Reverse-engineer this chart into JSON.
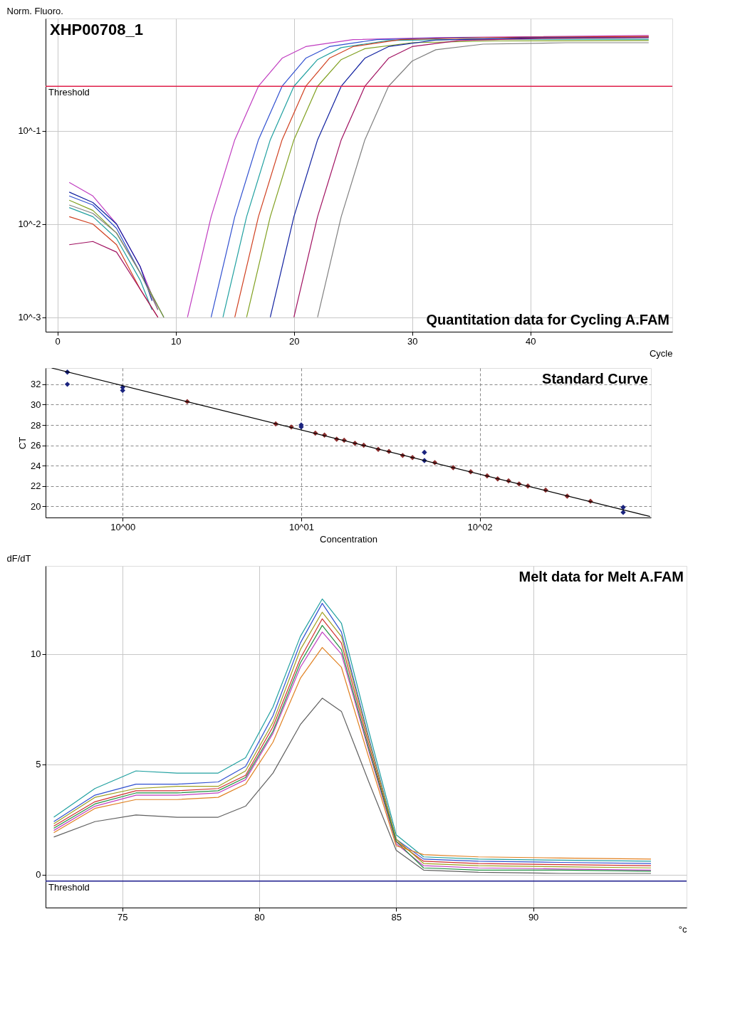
{
  "chart_data": [
    {
      "type": "line",
      "title": "XHP00708_1",
      "ylabel": "Norm. Fluoro.",
      "xlabel": "Cycle",
      "annotations": [
        "Quantitation data for Cycling A.FAM"
      ],
      "log": "y",
      "xlim": [
        -1,
        52
      ],
      "ylim": [
        0.0007,
        1.6
      ],
      "xticks": [
        0,
        10,
        20,
        30,
        40
      ],
      "yticks": [
        {
          "value": 0.001,
          "label": "10^-3"
        },
        {
          "value": 0.01,
          "label": "10^-2"
        },
        {
          "value": 0.1,
          "label": "10^-1"
        }
      ],
      "grid": true,
      "marker": "none",
      "line_style": "solid",
      "ref_lines": [
        {
          "axis": "y",
          "value": 0.3,
          "label": "Threshold",
          "color": "#e0204a"
        }
      ],
      "series": [
        {
          "color": "#c03cc0",
          "x": [
            1,
            3,
            5,
            7,
            8.5,
            10,
            11,
            13,
            15,
            17,
            19,
            21,
            25,
            32,
            50
          ],
          "values": [
            0.028,
            0.02,
            0.01,
            0.0035,
            0.0012,
            null,
            0.001,
            0.012,
            0.08,
            0.3,
            0.6,
            0.8,
            0.95,
            1.0,
            1.05
          ]
        },
        {
          "color": "#3050d0",
          "x": [
            1,
            3,
            5,
            7,
            9,
            10.5,
            13,
            15,
            17,
            19,
            21,
            23,
            27,
            34,
            50
          ],
          "values": [
            0.02,
            0.016,
            0.009,
            0.003,
            0.001,
            null,
            0.001,
            0.012,
            0.08,
            0.3,
            0.6,
            0.8,
            0.95,
            1.0,
            1.02
          ]
        },
        {
          "color": "#20a0a0",
          "x": [
            1,
            3,
            5,
            7,
            8,
            11,
            14,
            16,
            18,
            20,
            22,
            24,
            28,
            35,
            50
          ],
          "values": [
            0.015,
            0.012,
            0.007,
            0.0025,
            0.0012,
            null,
            0.001,
            0.012,
            0.08,
            0.3,
            0.58,
            0.78,
            0.93,
            0.96,
            0.96
          ]
        },
        {
          "color": "#d04020",
          "x": [
            1,
            3,
            5,
            7,
            8.5,
            11,
            15,
            17,
            19,
            21,
            23,
            25,
            29,
            36,
            50
          ],
          "values": [
            0.012,
            0.01,
            0.006,
            0.002,
            0.001,
            null,
            0.001,
            0.012,
            0.08,
            0.3,
            0.6,
            0.8,
            0.95,
            1.0,
            1.03
          ]
        },
        {
          "color": "#80a020",
          "x": [
            1,
            3,
            5,
            7,
            9,
            11,
            16,
            18,
            20,
            22,
            24,
            26,
            30,
            37,
            50
          ],
          "values": [
            0.018,
            0.014,
            0.008,
            0.003,
            0.001,
            null,
            0.001,
            0.012,
            0.08,
            0.3,
            0.58,
            0.76,
            0.88,
            0.92,
            0.93
          ]
        },
        {
          "color": "#1020a0",
          "x": [
            1,
            3,
            5,
            7,
            8,
            11,
            18,
            20,
            22,
            24,
            26,
            28,
            32,
            39,
            50
          ],
          "values": [
            0.022,
            0.017,
            0.01,
            0.0035,
            0.0015,
            null,
            0.001,
            0.012,
            0.08,
            0.3,
            0.6,
            0.8,
            0.94,
            0.99,
            1.0
          ]
        },
        {
          "color": "#a01060",
          "x": [
            1,
            3,
            5,
            7,
            8.5,
            11,
            20,
            22,
            24,
            26,
            28,
            30,
            34,
            41,
            50
          ],
          "values": [
            0.006,
            0.0065,
            0.005,
            0.002,
            0.001,
            null,
            0.001,
            0.012,
            0.08,
            0.3,
            0.6,
            0.8,
            0.93,
            0.98,
            1.0
          ]
        },
        {
          "color": "#808080",
          "x": [
            1,
            3,
            5,
            7,
            8.5,
            11,
            22,
            24,
            26,
            28,
            30,
            32,
            36,
            43,
            50
          ],
          "values": [
            0.016,
            0.013,
            0.008,
            0.003,
            0.0012,
            null,
            0.001,
            0.012,
            0.08,
            0.3,
            0.56,
            0.74,
            0.85,
            0.88,
            0.88
          ]
        }
      ]
    },
    {
      "type": "scatter",
      "xlabel": "Concentration",
      "ylabel": "CT",
      "annotations": [
        "Standard Curve"
      ],
      "log": "x",
      "xlim": [
        0.37,
        910
      ],
      "ylim": [
        18.9,
        33.6
      ],
      "xticks": [
        {
          "value": 1,
          "label": "10^00"
        },
        {
          "value": 10,
          "label": "10^01"
        },
        {
          "value": 100,
          "label": "10^02"
        }
      ],
      "yticks": [
        20,
        22,
        24,
        26,
        28,
        30,
        32
      ],
      "grid": true,
      "marker": "diamond",
      "series": [
        {
          "color": "#8b2c2c",
          "x": [
            2.3,
            7.2,
            8.8,
            12,
            13.5,
            15.8,
            17.4,
            20,
            22.4,
            27,
            31,
            37,
            42,
            56,
            71,
            89,
            110,
            126,
            145,
            166,
            186,
            234,
            309,
            417
          ],
          "values": [
            30.3,
            28.1,
            27.8,
            27.2,
            27.0,
            26.6,
            26.5,
            26.2,
            26.0,
            25.6,
            25.4,
            25.0,
            24.8,
            24.3,
            23.8,
            23.4,
            23.0,
            22.7,
            22.5,
            22.2,
            22.0,
            21.6,
            21.0,
            20.5
          ]
        },
        {
          "color": "#1a237e",
          "x": [
            0.49,
            0.49,
            1,
            1,
            10,
            10,
            49,
            49,
            636,
            636
          ],
          "values": [
            33.2,
            32.0,
            31.7,
            31.4,
            28.0,
            27.8,
            25.3,
            24.5,
            19.9,
            19.4
          ]
        },
        {
          "type": "line",
          "color": "#000000",
          "marker": "none",
          "x": [
            0.4,
            900
          ],
          "values": [
            33.6,
            19.0
          ]
        }
      ]
    },
    {
      "type": "line",
      "ylabel": "dF/dT",
      "xlabel": "°c",
      "annotations": [
        "Melt data for Melt A.FAM"
      ],
      "xlim": [
        72.2,
        95.6
      ],
      "ylim": [
        -1.5,
        14
      ],
      "xticks": [
        75,
        80,
        85,
        90
      ],
      "yticks": [
        0,
        5,
        10
      ],
      "grid": true,
      "marker": "none",
      "line_style": "solid",
      "ref_lines": [
        {
          "axis": "y",
          "value": -0.3,
          "label": "Threshold",
          "color": "#1a1a8c"
        }
      ],
      "x": [
        72.5,
        74,
        75.5,
        77,
        78.5,
        79.5,
        80.5,
        81.5,
        82.3,
        83,
        84,
        85,
        86,
        88,
        91,
        94.3
      ],
      "series": [
        {
          "color": "#20a0a0",
          "values": [
            2.6,
            3.9,
            4.7,
            4.6,
            4.6,
            5.3,
            7.6,
            10.8,
            12.5,
            11.4,
            6.5,
            1.8,
            0.8,
            0.7,
            0.65,
            0.6
          ]
        },
        {
          "color": "#3050d0",
          "values": [
            2.4,
            3.6,
            4.1,
            4.1,
            4.2,
            4.9,
            7.2,
            10.5,
            12.3,
            11.0,
            6.2,
            1.6,
            0.7,
            0.6,
            0.55,
            0.5
          ]
        },
        {
          "color": "#d03030",
          "values": [
            2.2,
            3.3,
            3.8,
            3.8,
            3.9,
            4.5,
            6.7,
            9.8,
            11.6,
            10.5,
            5.9,
            1.5,
            0.6,
            0.5,
            0.45,
            0.4
          ]
        },
        {
          "color": "#a0a020",
          "values": [
            2.3,
            3.5,
            3.9,
            4.0,
            4.0,
            4.7,
            6.9,
            10.2,
            11.9,
            10.8,
            6.1,
            1.6,
            0.5,
            0.4,
            0.35,
            0.3
          ]
        },
        {
          "color": "#c040c0",
          "values": [
            2.0,
            3.1,
            3.6,
            3.6,
            3.7,
            4.3,
            6.4,
            9.4,
            11.0,
            10.0,
            5.6,
            1.4,
            0.4,
            0.3,
            0.25,
            0.2
          ]
        },
        {
          "color": "#209040",
          "values": [
            2.1,
            3.2,
            3.7,
            3.7,
            3.8,
            4.4,
            6.5,
            9.6,
            11.3,
            10.2,
            5.7,
            1.5,
            0.3,
            0.2,
            0.2,
            0.15
          ]
        },
        {
          "color": "#e08020",
          "values": [
            1.9,
            3.0,
            3.4,
            3.4,
            3.5,
            4.1,
            6.0,
            8.9,
            10.3,
            9.4,
            5.3,
            1.3,
            0.9,
            0.8,
            0.75,
            0.7
          ]
        },
        {
          "color": "#606060",
          "values": [
            1.7,
            2.4,
            2.7,
            2.6,
            2.6,
            3.1,
            4.6,
            6.8,
            8.0,
            7.4,
            4.2,
            1.1,
            0.2,
            0.1,
            0.05,
            0.05
          ]
        }
      ]
    }
  ]
}
